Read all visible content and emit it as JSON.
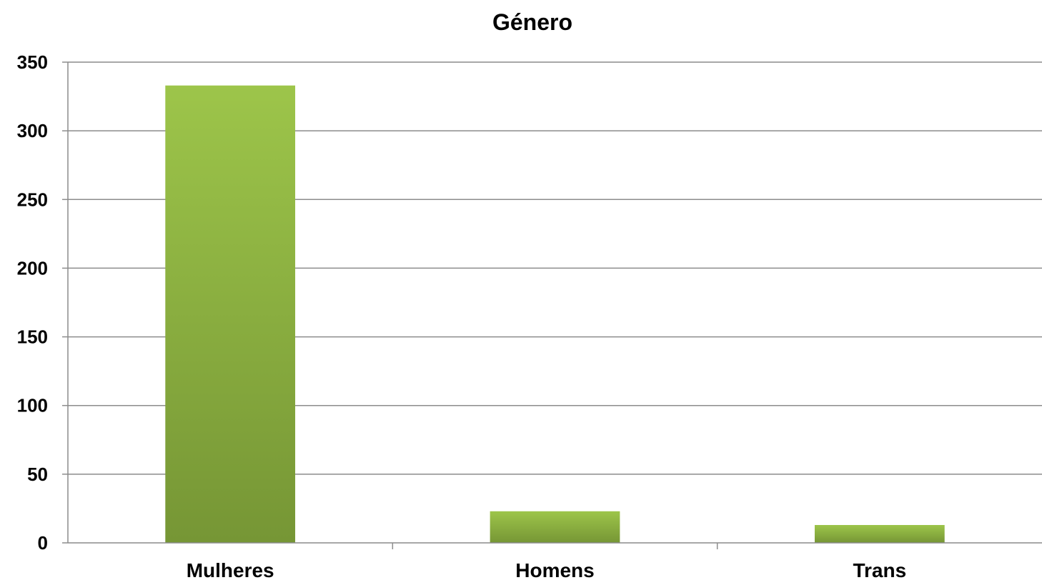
{
  "chart_data": {
    "type": "bar",
    "title": "Género",
    "xlabel": "",
    "ylabel": "",
    "categories": [
      "Mulheres",
      "Homens",
      "Trans"
    ],
    "values": [
      333,
      23,
      13
    ],
    "ylim": [
      0,
      350
    ],
    "yticks": [
      0,
      50,
      100,
      150,
      200,
      250,
      300,
      350
    ],
    "grid": true,
    "legend": "none",
    "colors": {
      "bar_top": "#9dc54a",
      "bar_bottom": "#769635",
      "grid": "#8c8c8c",
      "axis": "#8c8c8c"
    }
  }
}
